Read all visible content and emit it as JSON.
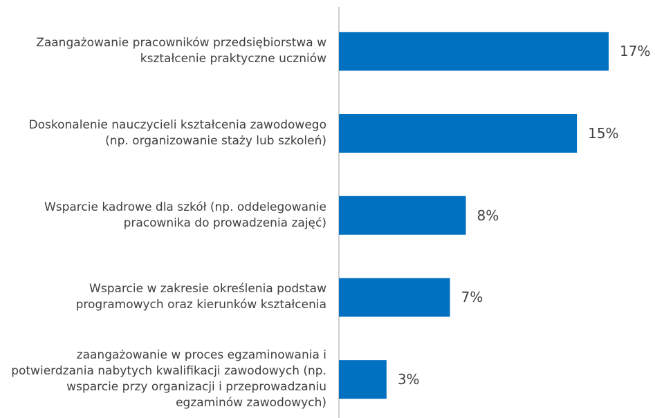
{
  "chart_data": {
    "type": "bar",
    "orientation": "horizontal",
    "categories": [
      "Zaangażowanie pracowników przedsiębiorstwa w kształcenie praktyczne uczniów",
      "Doskonalenie nauczycieli kształcenia zawodowego (np. organizowanie staży lub szkoleń)",
      "Wsparcie kadrowe dla szkół (np. oddelegowanie pracownika do prowadzenia zajęć)",
      "Wsparcie w zakresie określenia podstaw programowych oraz kierunków kształcenia",
      "zaangażowanie w proces egzaminowania i potwierdzania nabytych kwalifikacji zawodowych (np. wsparcie przy organizacji i przeprowadzaniu egzaminów zawodowych)"
    ],
    "values": [
      17,
      15,
      8,
      7,
      3
    ],
    "value_labels": [
      "17%",
      "15%",
      "8%",
      "7%",
      "3%"
    ],
    "color": "#0070c0"
  }
}
